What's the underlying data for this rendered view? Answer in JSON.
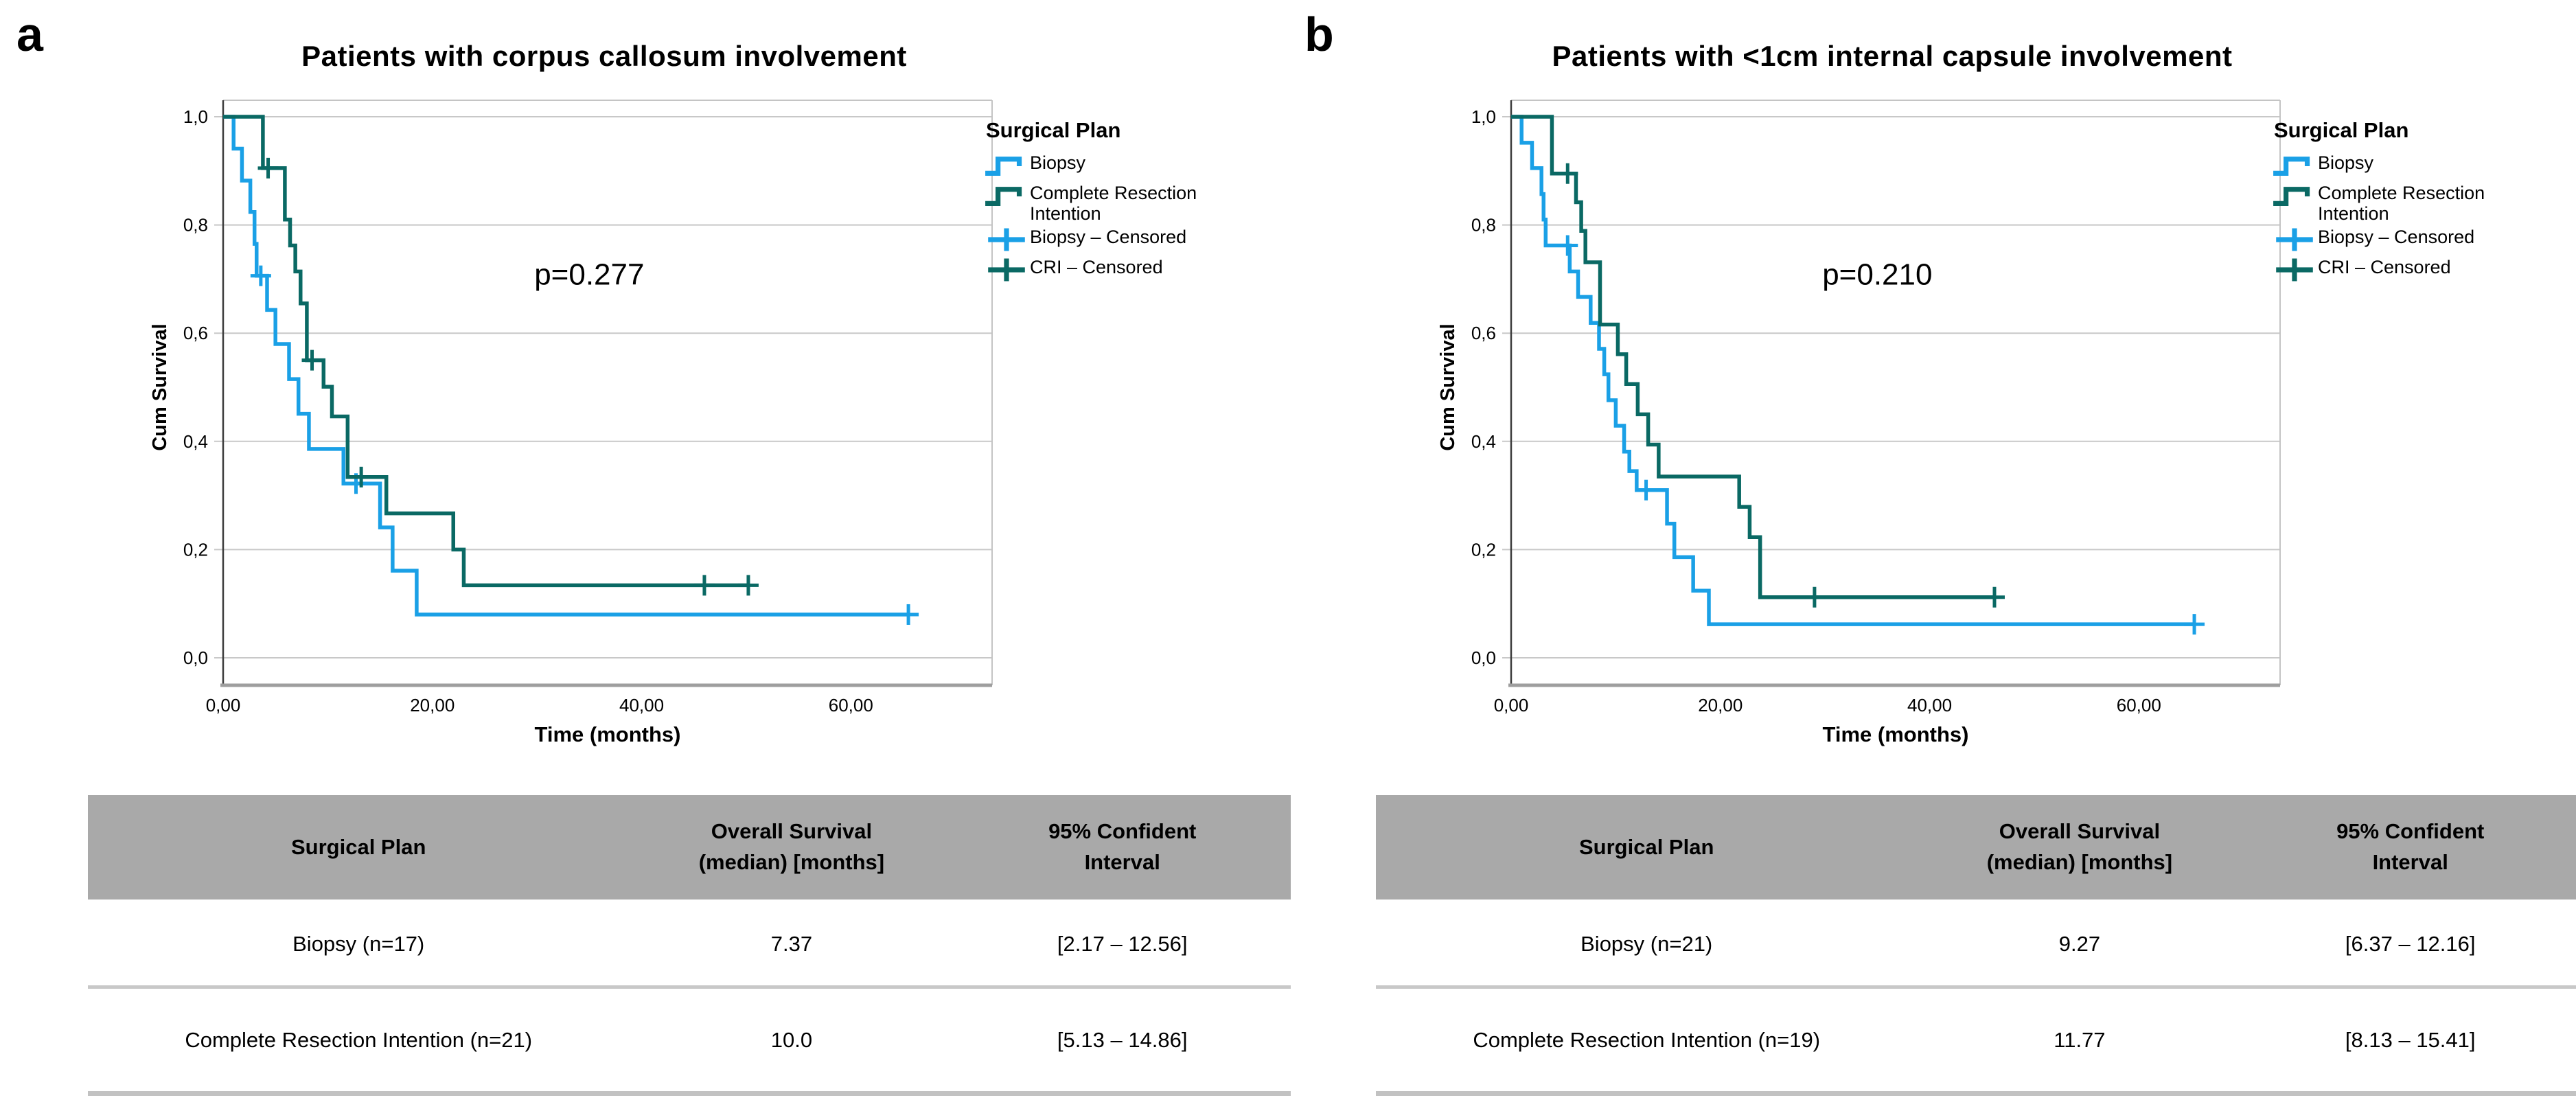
{
  "colors": {
    "biopsy": "#1aa0e6",
    "cri": "#0a6964",
    "grid": "#c8c8c8",
    "axis": "#3d3d3d",
    "axis_bottom": "#9e9e9e",
    "frame": "#c4c4c4",
    "table_header_bg": "#a9a9a9"
  },
  "legend": {
    "title": "Surgical Plan",
    "items": [
      {
        "label": "Biopsy",
        "glyph": "step-line",
        "color_key": "biopsy"
      },
      {
        "label": "Complete Resection\nIntention",
        "glyph": "step-line",
        "color_key": "cri"
      },
      {
        "label": "Biopsy – Censored",
        "glyph": "plus-mark",
        "color_key": "biopsy"
      },
      {
        "label": "CRI – Censored",
        "glyph": "plus-mark",
        "color_key": "cri"
      }
    ]
  },
  "panels": [
    {
      "letter": "a",
      "title": "Patients with corpus callosum involvement",
      "p_label": "p=0.277",
      "table": {
        "headers": [
          "Surgical Plan",
          "Overall Survival\n(median) [months]",
          "95% Confident\nInterval"
        ],
        "rows": [
          {
            "plan": "Biopsy (n=17)",
            "os": "7.37",
            "ci": "[2.17 – 12.56]"
          },
          {
            "plan": "Complete Resection Intention (n=21)",
            "os": "10.0",
            "ci": "[5.13 – 14.86]"
          }
        ]
      }
    },
    {
      "letter": "b",
      "title": "Patients with <1cm internal capsule involvement",
      "p_label": "p=0.210",
      "table": {
        "headers": [
          "Surgical Plan",
          "Overall Survival\n(median) [months]",
          "95% Confident\nInterval"
        ],
        "rows": [
          {
            "plan": "Biopsy (n=21)",
            "os": "9.27",
            "ci": "[6.37 – 12.16]"
          },
          {
            "plan": "Complete Resection Intention (n=19)",
            "os": "11.77",
            "ci": "[8.13 – 15.41]"
          }
        ]
      }
    }
  ],
  "chart_data": [
    {
      "type": "line",
      "subtype": "kaplan-meier-step",
      "title": "Patients with corpus callosum involvement",
      "xlabel": "Time (months)",
      "ylabel": "Cum Survival",
      "xlim": [
        0,
        73.5
      ],
      "ylim": [
        0,
        1.0
      ],
      "grid": true,
      "legend_position": "right",
      "xticks": {
        "values": [
          0,
          20,
          40,
          60
        ],
        "labels": [
          "0,00",
          "20,00",
          "40,00",
          "60,00"
        ]
      },
      "yticks": {
        "values": [
          0,
          0.2,
          0.4,
          0.6,
          0.8,
          1.0
        ],
        "labels": [
          "0,0",
          "0,2",
          "0,4",
          "0,6",
          "0,8",
          "1,0"
        ]
      },
      "annotation": {
        "text": "p=0.277",
        "x": 35,
        "y": 0.69
      },
      "series": [
        {
          "name": "Biopsy",
          "n": 17,
          "color_key": "biopsy",
          "steps": [
            [
              0,
              1.0
            ],
            [
              1.0,
              0.941
            ],
            [
              1.8,
              0.882
            ],
            [
              2.6,
              0.824
            ],
            [
              3.0,
              0.765
            ],
            [
              3.2,
              0.706
            ],
            [
              4.2,
              0.643
            ],
            [
              5.0,
              0.58
            ],
            [
              6.3,
              0.515
            ],
            [
              7.2,
              0.451
            ],
            [
              8.2,
              0.386
            ],
            [
              11.5,
              0.322
            ],
            [
              15.0,
              0.241
            ],
            [
              16.2,
              0.161
            ],
            [
              18.5,
              0.08
            ],
            [
              65.5,
              0.08
            ]
          ],
          "censored": [
            [
              3.6,
              0.706
            ],
            [
              12.7,
              0.322
            ],
            [
              65.5,
              0.08
            ]
          ]
        },
        {
          "name": "Complete Resection Intention",
          "n": 21,
          "color_key": "cri",
          "steps": [
            [
              0,
              1.0
            ],
            [
              3.8,
              0.905
            ],
            [
              5.9,
              0.81
            ],
            [
              6.4,
              0.762
            ],
            [
              6.9,
              0.714
            ],
            [
              7.4,
              0.655
            ],
            [
              8.0,
              0.55
            ],
            [
              9.6,
              0.501
            ],
            [
              10.4,
              0.446
            ],
            [
              11.9,
              0.334
            ],
            [
              15.6,
              0.267
            ],
            [
              22.0,
              0.2
            ],
            [
              23.0,
              0.134
            ],
            [
              50.2,
              0.134
            ]
          ],
          "censored": [
            [
              4.3,
              0.905
            ],
            [
              8.5,
              0.55
            ],
            [
              13.2,
              0.334
            ],
            [
              46.0,
              0.134
            ],
            [
              50.2,
              0.134
            ]
          ]
        }
      ],
      "summary": {
        "median_biopsy": 7.37,
        "ci_biopsy": [
          2.17,
          12.56
        ],
        "median_cri": 10.0,
        "ci_cri": [
          5.13,
          14.86
        ],
        "p_value": 0.277
      }
    },
    {
      "type": "line",
      "subtype": "kaplan-meier-step",
      "title": "Patients with <1cm internal capsule involvement",
      "xlabel": "Time (months)",
      "ylabel": "Cum Survival",
      "xlim": [
        0,
        73.5
      ],
      "ylim": [
        0,
        1.0
      ],
      "grid": true,
      "legend_position": "right",
      "xticks": {
        "values": [
          0,
          20,
          40,
          60
        ],
        "labels": [
          "0,00",
          "20,00",
          "40,00",
          "60,00"
        ]
      },
      "yticks": {
        "values": [
          0,
          0.2,
          0.4,
          0.6,
          0.8,
          1.0
        ],
        "labels": [
          "0,0",
          "0,2",
          "0,4",
          "0,6",
          "0,8",
          "1,0"
        ]
      },
      "annotation": {
        "text": "p=0.210",
        "x": 35,
        "y": 0.69
      },
      "series": [
        {
          "name": "Biopsy",
          "n": 21,
          "color_key": "biopsy",
          "steps": [
            [
              0,
              1.0
            ],
            [
              1.0,
              0.952
            ],
            [
              2.0,
              0.905
            ],
            [
              2.9,
              0.857
            ],
            [
              3.1,
              0.81
            ],
            [
              3.3,
              0.762
            ],
            [
              5.6,
              0.714
            ],
            [
              6.4,
              0.667
            ],
            [
              7.6,
              0.619
            ],
            [
              8.4,
              0.571
            ],
            [
              8.9,
              0.524
            ],
            [
              9.3,
              0.476
            ],
            [
              10.0,
              0.429
            ],
            [
              10.8,
              0.381
            ],
            [
              11.3,
              0.345
            ],
            [
              12.0,
              0.31
            ],
            [
              14.9,
              0.248
            ],
            [
              15.6,
              0.186
            ],
            [
              17.4,
              0.124
            ],
            [
              18.9,
              0.062
            ],
            [
              65.3,
              0.062
            ]
          ],
          "censored": [
            [
              5.4,
              0.762
            ],
            [
              12.9,
              0.31
            ],
            [
              65.3,
              0.062
            ]
          ]
        },
        {
          "name": "Complete Resection Intention",
          "n": 19,
          "color_key": "cri",
          "steps": [
            [
              0,
              1.0
            ],
            [
              3.9,
              0.895
            ],
            [
              6.2,
              0.842
            ],
            [
              6.7,
              0.789
            ],
            [
              7.1,
              0.731
            ],
            [
              8.5,
              0.616
            ],
            [
              10.2,
              0.561
            ],
            [
              11.0,
              0.506
            ],
            [
              12.1,
              0.45
            ],
            [
              13.1,
              0.394
            ],
            [
              14.1,
              0.335
            ],
            [
              21.8,
              0.279
            ],
            [
              22.8,
              0.223
            ],
            [
              23.8,
              0.112
            ],
            [
              46.2,
              0.112
            ]
          ],
          "censored": [
            [
              5.4,
              0.895
            ],
            [
              29.0,
              0.112
            ],
            [
              46.2,
              0.112
            ]
          ]
        }
      ],
      "summary": {
        "median_biopsy": 9.27,
        "ci_biopsy": [
          6.37,
          12.16
        ],
        "median_cri": 11.77,
        "ci_cri": [
          8.13,
          15.41
        ],
        "p_value": 0.21
      }
    }
  ]
}
